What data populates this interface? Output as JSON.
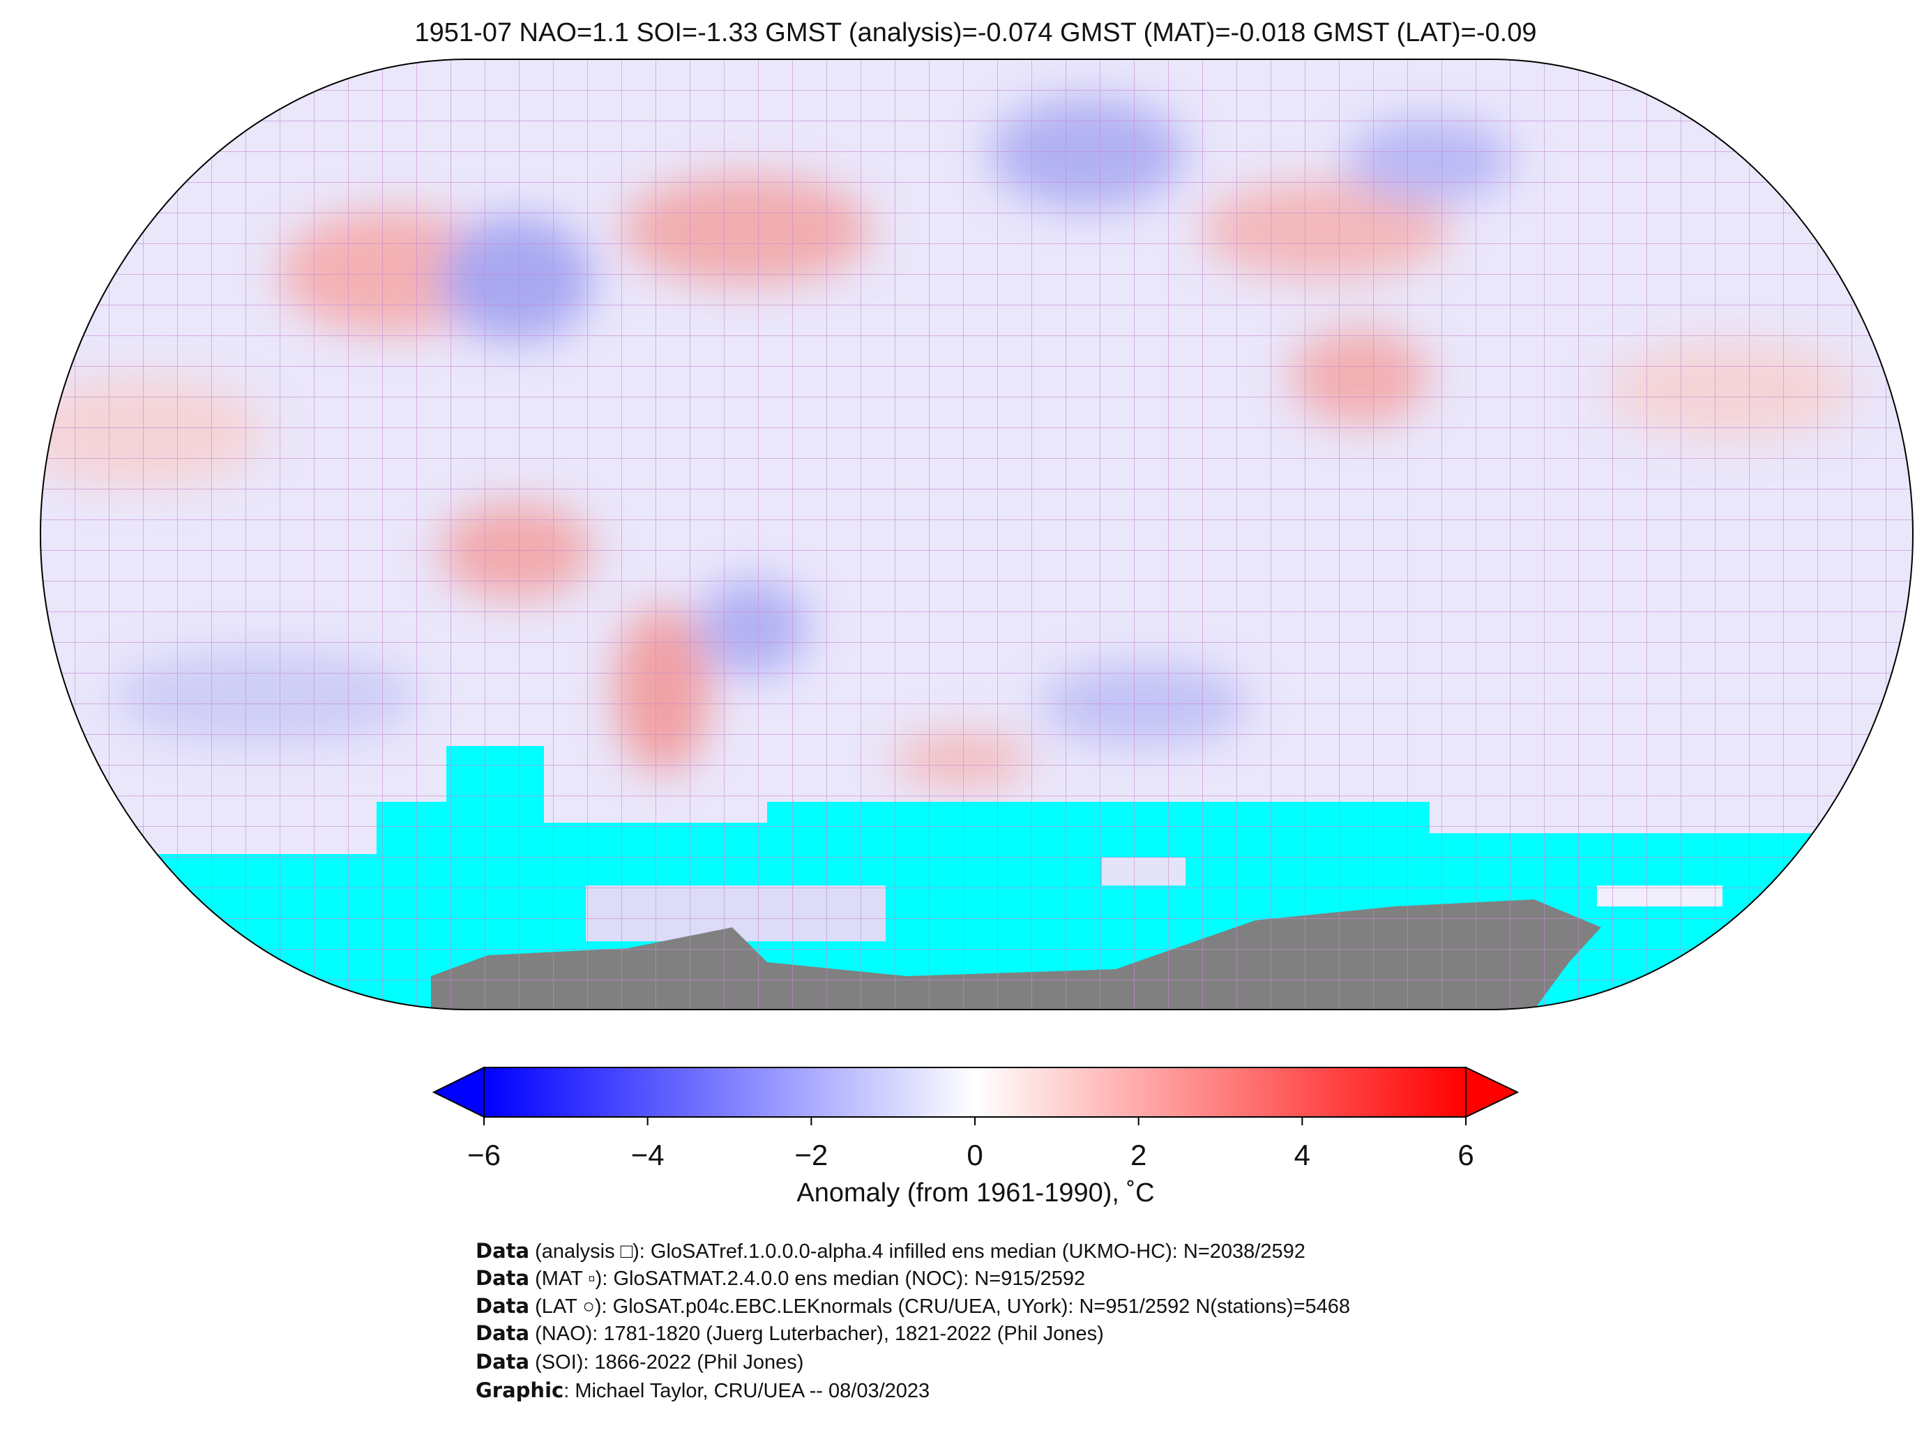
{
  "title": "1951-07 NAO=1.1 SOI=-1.33 GMST (analysis)=-0.074 GMST (MAT)=-0.018 GMST (LAT)=-0.09",
  "colorbar": {
    "label": "Anomaly (from 1961-1990), ˚C",
    "lim": [
      -6,
      6
    ],
    "ticks": [
      {
        "value": -6,
        "label": "−6"
      },
      {
        "value": -4,
        "label": "−4"
      },
      {
        "value": -2,
        "label": "−2"
      },
      0,
      2,
      4,
      6
    ],
    "colors": [
      "#0000ff",
      "#ffffff",
      "#ff0000"
    ]
  },
  "credits": [
    {
      "key": "Data",
      "text": " (analysis □): GloSATref.1.0.0.0-alpha.4 infilled ens median (UKMO-HC): N=2038/2592"
    },
    {
      "key": "Data",
      "text": " (MAT ▫): GloSATMAT.2.4.0.0 ens median (NOC): N=915/2592"
    },
    {
      "key": "Data",
      "text": " (LAT ○): GloSAT.p04c.EBC.LEKnormals (CRU/UEA, UYork): N=951/2592 N(stations)=5468"
    },
    {
      "key": "Data",
      "text": " (NAO): 1781-1820 (Juerg Luterbacher), 1821-2022 (Phil Jones)"
    },
    {
      "key": "Data",
      "text": " (SOI): 1866-2022 (Phil Jones)"
    },
    {
      "key": "Graphic",
      "text": ": Michael Taylor, CRU/UEA -- 08/03/2023"
    }
  ]
}
